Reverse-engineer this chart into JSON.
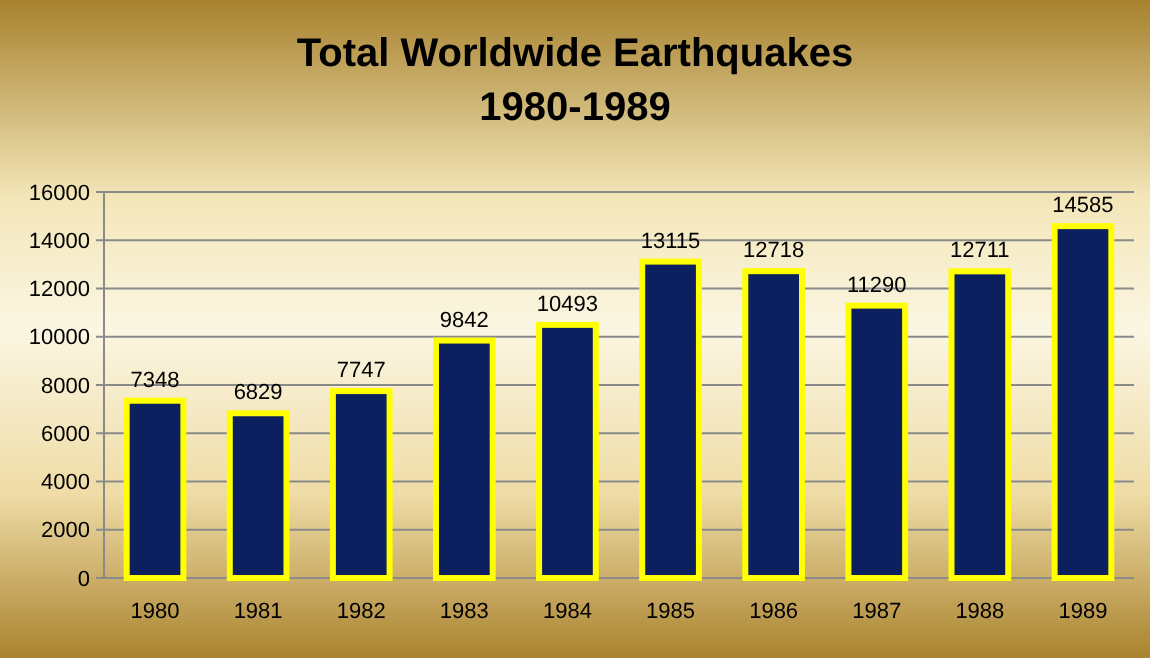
{
  "chart_data": {
    "type": "bar",
    "title": "Total Worldwide Earthquakes",
    "subtitle": "1980-1989",
    "categories": [
      "1980",
      "1981",
      "1982",
      "1983",
      "1984",
      "1985",
      "1986",
      "1987",
      "1988",
      "1989"
    ],
    "values": [
      7348,
      6829,
      7747,
      9842,
      10493,
      13115,
      12718,
      11290,
      12711,
      14585
    ],
    "color": "#0c1f5e",
    "ylim": [
      0,
      16000
    ],
    "yticks": [
      0,
      2000,
      4000,
      6000,
      8000,
      10000,
      12000,
      14000,
      16000
    ],
    "grid": "y",
    "data_labels": true
  }
}
